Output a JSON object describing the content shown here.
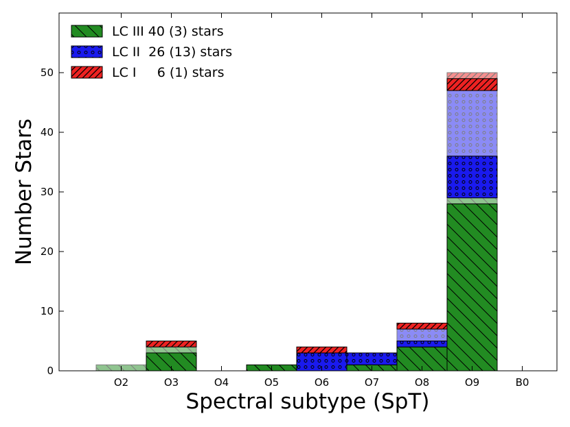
{
  "chart_data": {
    "type": "bar",
    "stacked": true,
    "xlabel": "Spectral subtype (SpT)",
    "ylabel": "Number Stars",
    "categories": [
      "O2",
      "O3",
      "O4",
      "O5",
      "O6",
      "O7",
      "O8",
      "O9",
      "B0"
    ],
    "ylim": [
      0,
      60
    ],
    "yticks": [
      "0",
      "10",
      "20",
      "30",
      "40",
      "50"
    ],
    "grid": false,
    "legend_position": "top-left",
    "series": [
      {
        "name": "LC III",
        "legend_label": "LC III 40 (3) stars",
        "color": "#228b22",
        "hatch": "diagonal-back",
        "values": [
          0,
          3,
          0,
          1,
          0,
          1,
          4,
          28,
          0
        ],
        "uncertain": [
          1,
          1,
          0,
          0,
          0,
          0,
          0,
          1,
          0
        ]
      },
      {
        "name": "LC II",
        "legend_label": "LC II  26 (13) stars",
        "color": "#1a1aee",
        "hatch": "circles",
        "values": [
          0,
          0,
          0,
          0,
          3,
          2,
          1,
          7,
          0
        ],
        "uncertain": [
          0,
          0,
          0,
          0,
          0,
          0,
          2,
          11,
          0
        ]
      },
      {
        "name": "LC I",
        "legend_label": "LC I     6 (1) stars",
        "color": "#ee2222",
        "hatch": "diagonal-forward",
        "values": [
          0,
          1,
          0,
          0,
          1,
          0,
          1,
          2,
          0
        ],
        "uncertain": [
          0,
          0,
          0,
          0,
          0,
          0,
          0,
          1,
          0
        ]
      }
    ]
  }
}
